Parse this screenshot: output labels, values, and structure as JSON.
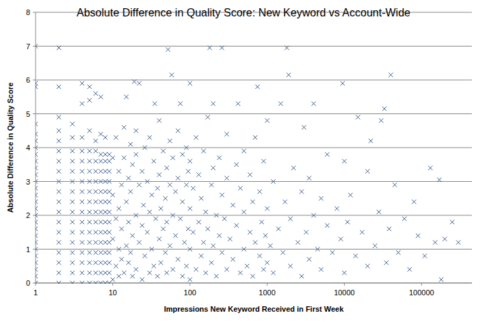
{
  "chart_data": {
    "type": "scatter",
    "title": "Absolute Difference in Quality Score: New Keyword vs Account-Wide",
    "x_label": "Impressions New Keyword Received in First Week",
    "y_label": "Absolute Difference in Quality Score",
    "log": "x",
    "grid": true,
    "color": "#3d5f8f",
    "marker": "x",
    "xlim": [
      1,
      450000
    ],
    "xticks": [
      1,
      10,
      100,
      1000,
      10000,
      100000
    ],
    "ylim": [
      0,
      8
    ],
    "yticks": [
      0,
      1,
      2,
      3,
      4,
      5,
      6,
      7,
      8
    ],
    "x": [
      1,
      1,
      1,
      1,
      1,
      1,
      1,
      1,
      1,
      1,
      1,
      1,
      1,
      1,
      1,
      1,
      1,
      1,
      1,
      1,
      1,
      1,
      1,
      1,
      1,
      1,
      1,
      2,
      2,
      2,
      2,
      2,
      2,
      2,
      2,
      2,
      2,
      2,
      2,
      2,
      2,
      2,
      2,
      2,
      2,
      2,
      3,
      3,
      3,
      3,
      3,
      3,
      3,
      3,
      3,
      3,
      3,
      3,
      3,
      3,
      3,
      3,
      4,
      4,
      4,
      4,
      4,
      4,
      4,
      4,
      4,
      4,
      4,
      4,
      4,
      4,
      4,
      4,
      4,
      5,
      5,
      5,
      5,
      5,
      5,
      5,
      5,
      5,
      5,
      5,
      5,
      5,
      5,
      5,
      5,
      5,
      6,
      6,
      6,
      6,
      6,
      6,
      6,
      6,
      6,
      6,
      6,
      6,
      6,
      6,
      6,
      6,
      7,
      7,
      7,
      7,
      7,
      7,
      7,
      7,
      7,
      7,
      7,
      7,
      7,
      7,
      7,
      7,
      8,
      8,
      8,
      8,
      8,
      8,
      8,
      8,
      8,
      8,
      8,
      8,
      8,
      8,
      8,
      9,
      9,
      9,
      9,
      9,
      9,
      9,
      9,
      9,
      9,
      9,
      9,
      9,
      9,
      10,
      10,
      10,
      10,
      11,
      11,
      11,
      12,
      12,
      12,
      12,
      13,
      13,
      13,
      14,
      14,
      14,
      15,
      15,
      15,
      16,
      16,
      16,
      17,
      17,
      17,
      18,
      18,
      18,
      19,
      20,
      20,
      20,
      20,
      22,
      22,
      22,
      24,
      24,
      24,
      25,
      26,
      26,
      28,
      28,
      30,
      30,
      30,
      32,
      32,
      34,
      34,
      35,
      36,
      38,
      38,
      40,
      40,
      40,
      42,
      42,
      45,
      45,
      48,
      48,
      50,
      50,
      50,
      52,
      55,
      55,
      55,
      58,
      60,
      60,
      60,
      65,
      65,
      70,
      70,
      70,
      75,
      75,
      80,
      80,
      80,
      85,
      90,
      90,
      90,
      95,
      95,
      100,
      100,
      100,
      100,
      100,
      110,
      110,
      120,
      120,
      130,
      130,
      140,
      140,
      150,
      150,
      160,
      160,
      170,
      170,
      180,
      190,
      190,
      200,
      200,
      200,
      220,
      220,
      240,
      240,
      260,
      260,
      260,
      280,
      300,
      300,
      300,
      330,
      360,
      360,
      400,
      400,
      420,
      450,
      450,
      500,
      500,
      500,
      550,
      600,
      600,
      650,
      650,
      700,
      700,
      750,
      800,
      800,
      850,
      900,
      900,
      950,
      1000,
      1000,
      1000,
      1100,
      1200,
      1200,
      1400,
      1500,
      1600,
      1700,
      1800,
      1900,
      2000,
      2000,
      2200,
      2500,
      2800,
      2800,
      3000,
      3200,
      3500,
      3500,
      4000,
      4000,
      4500,
      5000,
      5000,
      6000,
      6000,
      7000,
      8000,
      9000,
      9500,
      10000,
      10000,
      11000,
      12000,
      14000,
      15000,
      17000,
      20000,
      20000,
      22000,
      25000,
      28000,
      30000,
      33000,
      35000,
      38000,
      40000,
      45000,
      50000,
      60000,
      70000,
      80000,
      90000,
      110000,
      130000,
      150000,
      170000,
      180000,
      200000,
      250000,
      300000
    ],
    "values": [
      0,
      0.2,
      0.4,
      0.6,
      0.8,
      1,
      1.2,
      1.4,
      1.6,
      1.8,
      2,
      2.2,
      2.4,
      2.6,
      2.8,
      3,
      3.2,
      3.4,
      3.6,
      3.8,
      4,
      4.2,
      4.4,
      4.7,
      5.8,
      5.9,
      7,
      0,
      0.3,
      0.6,
      0.9,
      1.2,
      1.5,
      1.8,
      2.1,
      2.4,
      2.7,
      3,
      3.3,
      3.6,
      3.9,
      4.2,
      4.5,
      4.9,
      5.8,
      6.95,
      0,
      0.3,
      0.6,
      0.9,
      1.2,
      1.5,
      1.8,
      2.1,
      2.4,
      2.7,
      3,
      3.3,
      3.6,
      3.9,
      4.3,
      4.7,
      0,
      0.3,
      0.6,
      0.9,
      1.2,
      1.5,
      1.8,
      2.1,
      2.4,
      2.7,
      3,
      3.3,
      3.6,
      3.9,
      4.3,
      5.3,
      5.9,
      0,
      0.3,
      0.6,
      0.9,
      1.2,
      1.5,
      1.8,
      2.1,
      2.4,
      2.7,
      3,
      3.3,
      3.6,
      3.9,
      4.5,
      5.4,
      5.8,
      0,
      0.3,
      0.6,
      0.9,
      1.2,
      1.5,
      1.8,
      2.1,
      2.4,
      2.7,
      3,
      3.3,
      3.6,
      3.9,
      4.2,
      5.6,
      0,
      0.3,
      0.6,
      0.9,
      1.2,
      1.5,
      1.8,
      2.1,
      2.4,
      2.7,
      3,
      3.3,
      3.6,
      3.8,
      4.4,
      5.5,
      0,
      0.3,
      0.6,
      0.9,
      1.2,
      1.5,
      1.8,
      2.1,
      2.4,
      2.7,
      3,
      3.3,
      3.6,
      3.8,
      4.3,
      0,
      0.3,
      0.6,
      0.9,
      1.2,
      1.5,
      1.8,
      2.1,
      2.4,
      2.7,
      3,
      3.3,
      3.6,
      3.8,
      0.1,
      1.3,
      2.6,
      3.7,
      0.5,
      1.9,
      4.3,
      0.2,
      1.0,
      2.2,
      3.3,
      0.7,
      1.6,
      2.9,
      0.3,
      3.7,
      4.6,
      1.1,
      2.4,
      5.5,
      0.6,
      1.8,
      3.1,
      0.9,
      2.7,
      4.1,
      0.2,
      1.4,
      3.5,
      5.95,
      0.4,
      2.0,
      3.8,
      4.5,
      1.2,
      2.9,
      5.9,
      0.1,
      1.7,
      3.3,
      2.3,
      0.8,
      4.0,
      1.5,
      3.0,
      0.3,
      2.1,
      4.3,
      1.0,
      2.6,
      0.5,
      3.6,
      5.3,
      1.9,
      0.2,
      2.8,
      1.3,
      3.2,
      4.8,
      0.6,
      2.2,
      1.6,
      3.9,
      0.9,
      2.5,
      0.3,
      1.8,
      3.4,
      6.9,
      1.1,
      2.9,
      4.2,
      6.15,
      0.4,
      2.0,
      3.7,
      1.4,
      2.7,
      0.7,
      3.1,
      4.5,
      1.9,
      5.3,
      0.2,
      2.4,
      3.8,
      1.2,
      0.5,
      2.9,
      4.0,
      1.6,
      3.3,
      0.1,
      1.0,
      2.2,
      3.6,
      5.9,
      1.5,
      2.8,
      0.4,
      4.3,
      1.8,
      3.2,
      0.8,
      2.5,
      1.2,
      3.9,
      0.3,
      2.1,
      1.6,
      4.9,
      6.95,
      0.6,
      2.9,
      1.1,
      3.4,
      5.3,
      0.2,
      2.0,
      1.4,
      3.7,
      0.9,
      2.6,
      6.95,
      1.9,
      0.4,
      3.1,
      4.4,
      1.3,
      0.7,
      2.3,
      1.7,
      3.5,
      5.3,
      0.3,
      2.8,
      1.0,
      2.1,
      3.9,
      0.5,
      1.5,
      3.2,
      0.2,
      2.4,
      1.2,
      4.3,
      5.8,
      0.8,
      2.7,
      1.8,
      0.4,
      3.6,
      1.4,
      0.6,
      2.2,
      4.8,
      1.1,
      0.3,
      3.0,
      1.6,
      5.3,
      0.9,
      2.4,
      6.95,
      6.15,
      0.5,
      1.9,
      3.4,
      1.2,
      0.2,
      2.7,
      4.6,
      1.5,
      0.7,
      3.1,
      2.0,
      5.3,
      1.0,
      0.4,
      2.5,
      1.7,
      3.8,
      0.9,
      2.2,
      1.3,
      5.9,
      0.3,
      3.6,
      1.8,
      2.6,
      0.8,
      4.9,
      1.5,
      0.5,
      3.3,
      4.2,
      1.1,
      2.1,
      4.8,
      5.15,
      0.6,
      1.6,
      6.15,
      2.9,
      0.9,
      1.9,
      0.4,
      2.4,
      1.4,
      0.8,
      3.4,
      1.2,
      3.05,
      0.1,
      1.3,
      1.8,
      1.2
    ]
  }
}
